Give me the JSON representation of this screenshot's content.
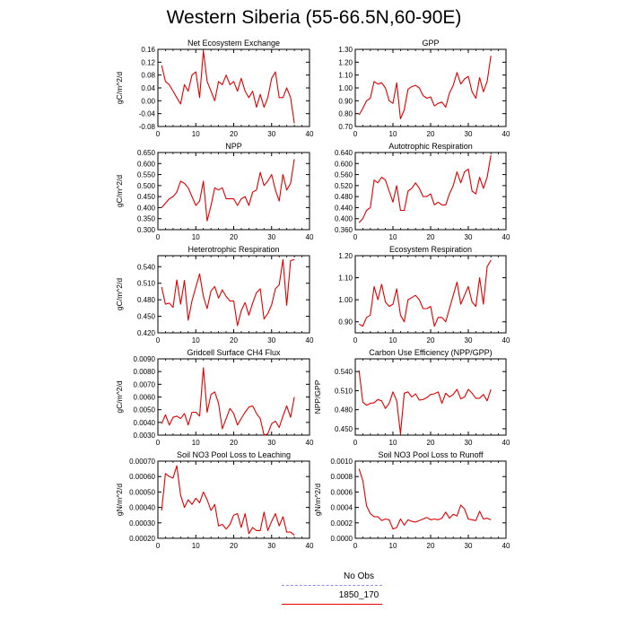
{
  "title": "Western Siberia (55-66.5N,60-90E)",
  "legend": [
    {
      "label": "No Obs",
      "color": "#8b8bf0",
      "style": "dashed"
    },
    {
      "label": "1850_170",
      "color": "#e00000",
      "style": "solid"
    }
  ],
  "chart_data": [
    {
      "type": "line",
      "title": "Net Ecosystem Exchange",
      "xlabel": "",
      "ylabel": "gC/m^2/d",
      "xlim": [
        0,
        40
      ],
      "ylim": [
        -0.08,
        0.16
      ],
      "xticks": [
        0,
        10,
        20,
        30,
        40
      ],
      "yticks": [
        "-0.08",
        "-0.04",
        "0.00",
        "0.04",
        "0.08",
        "0.12",
        "0.16"
      ],
      "series": [
        {
          "color": "#e00000",
          "x": [
            1,
            2,
            3,
            4,
            5,
            6,
            7,
            8,
            9,
            10,
            11,
            12,
            13,
            14,
            15,
            16,
            17,
            18,
            19,
            20,
            21,
            22,
            23,
            24,
            25,
            26,
            27,
            28,
            29,
            30,
            31,
            32,
            33,
            34,
            35,
            36
          ],
          "values": [
            0.11,
            0.06,
            0.05,
            0.03,
            0.01,
            -0.01,
            0.05,
            0.03,
            0.08,
            0.09,
            0.01,
            0.155,
            0.06,
            0.03,
            0.0,
            0.06,
            0.05,
            0.08,
            0.05,
            0.06,
            0.03,
            0.07,
            0.03,
            0.01,
            0.03,
            -0.02,
            0.02,
            -0.02,
            0.01,
            0.07,
            0.09,
            0.01,
            0.01,
            0.04,
            0.01,
            -0.07
          ]
        }
      ]
    },
    {
      "type": "line",
      "title": "GPP",
      "xlabel": "",
      "ylabel": "",
      "xlim": [
        0,
        40
      ],
      "ylim": [
        0.7,
        1.3
      ],
      "xticks": [
        0,
        10,
        20,
        30,
        40
      ],
      "yticks": [
        "0.70",
        "0.80",
        "0.90",
        "1.00",
        "1.10",
        "1.20",
        "1.30"
      ],
      "series": [
        {
          "color": "#e00000",
          "x": [
            1,
            2,
            3,
            4,
            5,
            6,
            7,
            8,
            9,
            10,
            11,
            12,
            13,
            14,
            15,
            16,
            17,
            18,
            19,
            20,
            21,
            22,
            23,
            24,
            25,
            26,
            27,
            28,
            29,
            30,
            31,
            32,
            33,
            34,
            35,
            36
          ],
          "values": [
            0.79,
            0.84,
            0.9,
            0.92,
            1.05,
            1.03,
            1.04,
            1.0,
            0.9,
            0.88,
            1.04,
            0.76,
            0.83,
            0.99,
            1.01,
            1.02,
            1.0,
            0.94,
            0.92,
            0.93,
            0.86,
            0.88,
            0.89,
            0.85,
            0.96,
            1.02,
            1.12,
            1.03,
            1.07,
            1.09,
            0.97,
            0.92,
            1.08,
            0.97,
            1.05,
            1.25
          ]
        }
      ]
    },
    {
      "type": "line",
      "title": "NPP",
      "xlabel": "",
      "ylabel": "gC/m^2/d",
      "xlim": [
        0,
        40
      ],
      "ylim": [
        0.3,
        0.65
      ],
      "xticks": [
        0,
        10,
        20,
        30,
        40
      ],
      "yticks": [
        "0.300",
        "0.350",
        "0.400",
        "0.450",
        "0.500",
        "0.550",
        "0.600",
        "0.650"
      ],
      "series": [
        {
          "color": "#e00000",
          "x": [
            1,
            2,
            3,
            4,
            5,
            6,
            7,
            8,
            9,
            10,
            11,
            12,
            13,
            14,
            15,
            16,
            17,
            18,
            19,
            20,
            21,
            22,
            23,
            24,
            25,
            26,
            27,
            28,
            29,
            30,
            31,
            32,
            33,
            34,
            35,
            36
          ],
          "values": [
            0.4,
            0.42,
            0.44,
            0.45,
            0.47,
            0.52,
            0.51,
            0.49,
            0.45,
            0.41,
            0.43,
            0.52,
            0.34,
            0.41,
            0.49,
            0.48,
            0.49,
            0.44,
            0.44,
            0.44,
            0.41,
            0.44,
            0.45,
            0.41,
            0.47,
            0.48,
            0.56,
            0.5,
            0.52,
            0.55,
            0.48,
            0.43,
            0.55,
            0.48,
            0.51,
            0.62
          ]
        }
      ]
    },
    {
      "type": "line",
      "title": "Autotrophic Respiration",
      "xlabel": "",
      "ylabel": "",
      "xlim": [
        0,
        40
      ],
      "ylim": [
        0.36,
        0.64
      ],
      "xticks": [
        0,
        10,
        20,
        30,
        40
      ],
      "yticks": [
        "0.360",
        "0.400",
        "0.440",
        "0.480",
        "0.520",
        "0.560",
        "0.600",
        "0.640"
      ],
      "series": [
        {
          "color": "#e00000",
          "x": [
            1,
            2,
            3,
            4,
            5,
            6,
            7,
            8,
            9,
            10,
            11,
            12,
            13,
            14,
            15,
            16,
            17,
            18,
            19,
            20,
            21,
            22,
            23,
            24,
            25,
            26,
            27,
            28,
            29,
            30,
            31,
            32,
            33,
            34,
            35,
            36
          ],
          "values": [
            0.385,
            0.4,
            0.43,
            0.44,
            0.54,
            0.53,
            0.55,
            0.54,
            0.5,
            0.46,
            0.52,
            0.43,
            0.43,
            0.5,
            0.51,
            0.53,
            0.51,
            0.48,
            0.48,
            0.49,
            0.45,
            0.46,
            0.45,
            0.45,
            0.49,
            0.52,
            0.57,
            0.53,
            0.57,
            0.58,
            0.5,
            0.49,
            0.55,
            0.51,
            0.55,
            0.63
          ]
        }
      ]
    },
    {
      "type": "line",
      "title": "Heterotrophic Respiration",
      "xlabel": "",
      "ylabel": "gC/m^2/d",
      "xlim": [
        0,
        40
      ],
      "ylim": [
        0.42,
        0.56
      ],
      "xticks": [
        0,
        10,
        20,
        30,
        40
      ],
      "yticks": [
        "0.420",
        "0.450",
        "0.480",
        "0.510",
        "0.540"
      ],
      "series": [
        {
          "color": "#e00000",
          "x": [
            1,
            2,
            3,
            4,
            5,
            6,
            7,
            8,
            9,
            10,
            11,
            12,
            13,
            14,
            15,
            16,
            17,
            18,
            19,
            20,
            21,
            22,
            23,
            24,
            25,
            26,
            27,
            28,
            29,
            30,
            31,
            32,
            33,
            34,
            35,
            36
          ],
          "values": [
            0.503,
            0.472,
            0.474,
            0.466,
            0.516,
            0.472,
            0.515,
            0.443,
            0.478,
            0.503,
            0.527,
            0.486,
            0.464,
            0.496,
            0.504,
            0.483,
            0.498,
            0.486,
            0.478,
            0.478,
            0.433,
            0.46,
            0.475,
            0.452,
            0.474,
            0.493,
            0.5,
            0.445,
            0.455,
            0.471,
            0.5,
            0.507,
            0.553,
            0.47,
            0.551,
            0.553
          ]
        }
      ]
    },
    {
      "type": "line",
      "title": "Ecosystem Respiration",
      "xlabel": "",
      "ylabel": "",
      "xlim": [
        0,
        40
      ],
      "ylim": [
        0.85,
        1.2
      ],
      "xticks": [
        0,
        10,
        20,
        30,
        40
      ],
      "yticks": [
        "0.90",
        "1.00",
        "1.10",
        "1.20"
      ],
      "series": [
        {
          "color": "#e00000",
          "x": [
            1,
            2,
            3,
            4,
            5,
            6,
            7,
            8,
            9,
            10,
            11,
            12,
            13,
            14,
            15,
            16,
            17,
            18,
            19,
            20,
            21,
            22,
            23,
            24,
            25,
            26,
            27,
            28,
            29,
            30,
            31,
            32,
            33,
            34,
            35,
            36
          ],
          "values": [
            0.89,
            0.88,
            0.92,
            0.93,
            1.06,
            1.0,
            1.07,
            0.99,
            0.97,
            0.98,
            1.05,
            0.93,
            0.9,
            1.0,
            1.01,
            1.02,
            1.0,
            0.96,
            0.96,
            0.97,
            0.88,
            0.92,
            0.92,
            0.9,
            0.96,
            1.02,
            1.08,
            0.98,
            1.02,
            1.06,
            0.99,
            0.97,
            1.1,
            0.98,
            1.15,
            1.18
          ]
        }
      ]
    },
    {
      "type": "line",
      "title": "Gridcell Surface CH4 Flux",
      "xlabel": "",
      "ylabel": "gC/m^2/d",
      "xlim": [
        0,
        40
      ],
      "ylim": [
        0.003,
        0.009
      ],
      "xticks": [
        0,
        10,
        20,
        30,
        40
      ],
      "yticks": [
        "0.0030",
        "0.0040",
        "0.0050",
        "0.0060",
        "0.0070",
        "0.0080",
        "0.0090"
      ],
      "series": [
        {
          "color": "#e00000",
          "x": [
            1,
            2,
            3,
            4,
            5,
            6,
            7,
            8,
            9,
            10,
            11,
            12,
            13,
            14,
            15,
            16,
            17,
            18,
            19,
            20,
            21,
            22,
            23,
            24,
            25,
            26,
            27,
            28,
            29,
            30,
            31,
            32,
            33,
            34,
            35,
            36
          ],
          "values": [
            0.0039,
            0.0046,
            0.0038,
            0.0044,
            0.0045,
            0.0043,
            0.0047,
            0.0038,
            0.0048,
            0.0048,
            0.0045,
            0.0083,
            0.0048,
            0.0062,
            0.0064,
            0.0055,
            0.0035,
            0.0043,
            0.0051,
            0.0047,
            0.0038,
            0.0043,
            0.0048,
            0.0052,
            0.0053,
            0.0047,
            0.0043,
            0.003,
            0.0031,
            0.0039,
            0.0041,
            0.0036,
            0.0045,
            0.0053,
            0.0044,
            0.006
          ]
        }
      ]
    },
    {
      "type": "line",
      "title": "Carbon Use Efficiency (NPP/GPP)",
      "xlabel": "",
      "ylabel": "NPP/GPP",
      "xlim": [
        0,
        40
      ],
      "ylim": [
        0.44,
        0.56
      ],
      "xticks": [
        0,
        10,
        20,
        30,
        40
      ],
      "yticks": [
        "0.450",
        "0.480",
        "0.510",
        "0.540"
      ],
      "series": [
        {
          "color": "#e00000",
          "x": [
            1,
            2,
            3,
            4,
            5,
            6,
            7,
            8,
            9,
            10,
            11,
            12,
            13,
            14,
            15,
            16,
            17,
            18,
            19,
            20,
            21,
            22,
            23,
            24,
            25,
            26,
            27,
            28,
            29,
            30,
            31,
            32,
            33,
            34,
            35,
            36
          ],
          "values": [
            0.542,
            0.492,
            0.487,
            0.49,
            0.491,
            0.496,
            0.494,
            0.482,
            0.49,
            0.508,
            0.494,
            0.442,
            0.506,
            0.508,
            0.5,
            0.505,
            0.495,
            0.496,
            0.499,
            0.504,
            0.505,
            0.508,
            0.49,
            0.506,
            0.5,
            0.504,
            0.512,
            0.497,
            0.5,
            0.512,
            0.506,
            0.498,
            0.498,
            0.504,
            0.494,
            0.512
          ]
        }
      ]
    },
    {
      "type": "line",
      "title": "Soil NO3 Pool Loss to Leaching",
      "xlabel": "",
      "ylabel": "gN/m^2/d",
      "xlim": [
        0,
        40
      ],
      "ylim": [
        0.0002,
        0.0007
      ],
      "xticks": [
        0,
        10,
        20,
        30,
        40
      ],
      "yticks": [
        "0.00020",
        "0.00030",
        "0.00040",
        "0.00050",
        "0.00060",
        "0.00070"
      ],
      "series": [
        {
          "color": "#e00000",
          "x": [
            1,
            2,
            3,
            4,
            5,
            6,
            7,
            8,
            9,
            10,
            11,
            12,
            13,
            14,
            15,
            16,
            17,
            18,
            19,
            20,
            21,
            22,
            23,
            24,
            25,
            26,
            27,
            28,
            29,
            30,
            31,
            32,
            33,
            34,
            35,
            36
          ],
          "values": [
            0.00038,
            0.00062,
            0.0006,
            0.00059,
            0.00067,
            0.00048,
            0.0004,
            0.00045,
            0.00042,
            0.00046,
            0.00043,
            0.0005,
            0.00045,
            0.00038,
            0.00042,
            0.00028,
            0.00029,
            0.00026,
            0.00029,
            0.00035,
            0.00036,
            0.00027,
            0.00036,
            0.00023,
            0.00027,
            0.00025,
            0.00025,
            0.00037,
            0.00025,
            0.00031,
            0.00036,
            0.00028,
            0.00034,
            0.00024,
            0.00024,
            0.00022
          ]
        }
      ]
    },
    {
      "type": "line",
      "title": "Soil NO3 Pool Loss to Runoff",
      "xlabel": "",
      "ylabel": "gN/m^2/d",
      "xlim": [
        0,
        40
      ],
      "ylim": [
        0.0,
        0.001
      ],
      "xticks": [
        0,
        10,
        20,
        30,
        40
      ],
      "yticks": [
        "0.0000",
        "0.0002",
        "0.0004",
        "0.0006",
        "0.0008",
        "0.0010"
      ],
      "series": [
        {
          "color": "#e00000",
          "x": [
            1,
            2,
            3,
            4,
            5,
            6,
            7,
            8,
            9,
            10,
            11,
            12,
            13,
            14,
            15,
            16,
            17,
            18,
            19,
            20,
            21,
            22,
            23,
            24,
            25,
            26,
            27,
            28,
            29,
            30,
            31,
            32,
            33,
            34,
            35,
            36
          ],
          "values": [
            0.0009,
            0.00075,
            0.00042,
            0.00032,
            0.00028,
            0.00028,
            0.00023,
            0.00025,
            0.00024,
            0.00012,
            0.00014,
            0.00025,
            0.00017,
            0.00024,
            0.00022,
            0.00021,
            0.00023,
            0.00025,
            0.00027,
            0.00024,
            0.00025,
            0.00024,
            0.00026,
            0.00034,
            0.00026,
            0.00031,
            0.00029,
            0.00043,
            0.00038,
            0.00025,
            0.00024,
            0.00023,
            0.00035,
            0.00025,
            0.00026,
            0.00024
          ]
        }
      ]
    }
  ]
}
